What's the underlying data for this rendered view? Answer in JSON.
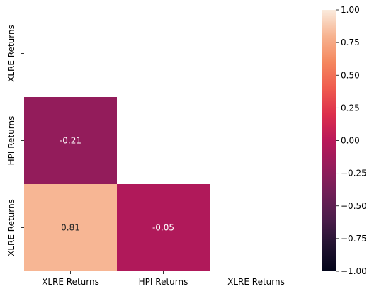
{
  "chart_data": {
    "type": "heatmap",
    "title": "",
    "xlabel": "",
    "ylabel": "",
    "x_categories": [
      "XLRE Returns",
      "HPI Returns",
      "XLRE Returns"
    ],
    "y_categories": [
      "XLRE Returns",
      "HPI Returns",
      "XLRE Returns"
    ],
    "mask": "upper-triangle-including-diagonal",
    "cells": [
      {
        "row": 1,
        "col": 0,
        "value": -0.21,
        "label": "-0.21"
      },
      {
        "row": 2,
        "col": 0,
        "value": 0.81,
        "label": "0.81"
      },
      {
        "row": 2,
        "col": 1,
        "value": -0.05,
        "label": "-0.05"
      }
    ],
    "colormap": "rocket",
    "colorbar": {
      "vmin": -1.0,
      "vmax": 1.0,
      "ticks": [
        -1.0,
        -0.75,
        -0.5,
        -0.25,
        0.0,
        0.25,
        0.5,
        0.75,
        1.0
      ],
      "tick_labels": [
        "−1.00",
        "−0.75",
        "−0.50",
        "−0.25",
        "0.00",
        "0.25",
        "0.50",
        "0.75",
        "1.00"
      ],
      "placement": "right"
    },
    "colors": {
      "cell_neg_021": "#9c1b5a",
      "cell_081": "#f7c5a8",
      "cell_neg_005": "#c0174f"
    }
  }
}
